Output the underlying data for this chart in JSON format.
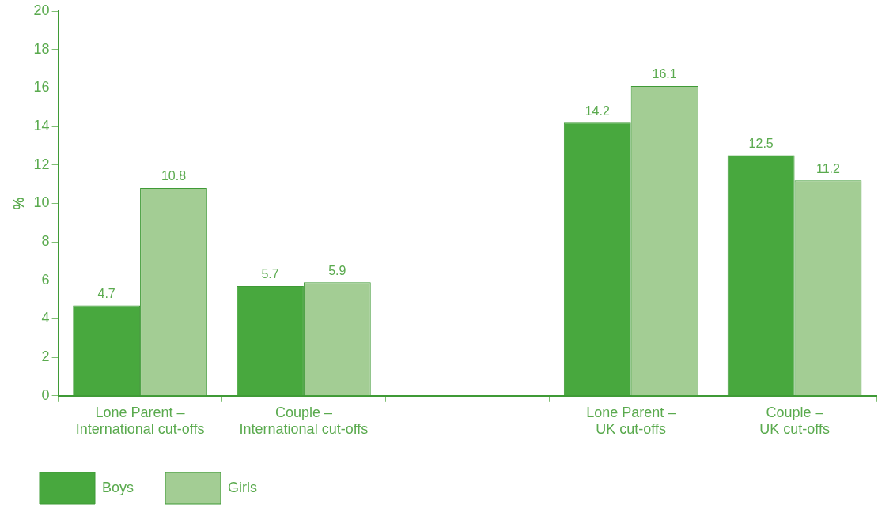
{
  "chart_data": {
    "type": "bar",
    "ylabel": "%",
    "categories": [
      "Lone Parent –\nInternational cut-offs",
      "Couple –\nInternational cut-offs",
      null,
      "Lone Parent –\nUK cut-offs",
      "Couple –\nUK cut-offs"
    ],
    "series": [
      {
        "name": "Boys",
        "color": "#48a83e",
        "values": [
          4.7,
          5.7,
          null,
          14.2,
          12.5
        ]
      },
      {
        "name": "Girls",
        "color": "#a3cd94",
        "values": [
          10.8,
          5.9,
          null,
          16.1,
          11.2
        ]
      }
    ],
    "ylim": [
      0,
      20
    ],
    "yticks": [
      0,
      2,
      4,
      6,
      8,
      10,
      12,
      14,
      16,
      18,
      20
    ],
    "grid": false,
    "legend": "bottom left",
    "data_labels": true
  }
}
